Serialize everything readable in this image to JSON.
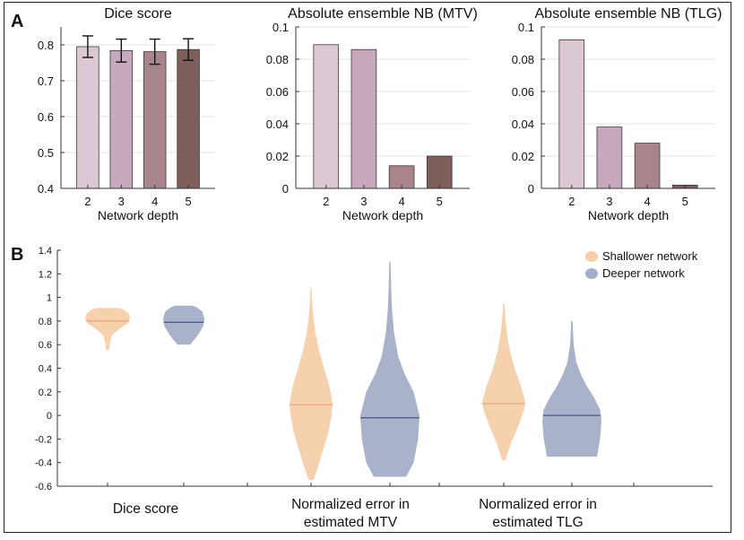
{
  "panel_labels": {
    "a": "A",
    "b": "B"
  },
  "colors": {
    "depth2": "#dcc8d4",
    "depth3": "#c7a9bd",
    "depth4": "#a8858a",
    "depth5": "#7d5e5b",
    "shallow": "#f4cfa9",
    "shallow_median": "#e8a678",
    "deep": "#a4aec6",
    "deep_median": "#4b5580"
  },
  "chart_data": [
    {
      "type": "bar",
      "title": "Dice score",
      "xlabel": "Network depth",
      "ylabel": "",
      "categories": [
        "2",
        "3",
        "4",
        "5"
      ],
      "values": [
        0.795,
        0.784,
        0.781,
        0.787
      ],
      "errors": [
        0.03,
        0.032,
        0.035,
        0.03
      ],
      "ylim": [
        0.4,
        0.85
      ],
      "yticks": [
        "0.4",
        "0.5",
        "0.6",
        "0.7",
        "0.8"
      ],
      "grid": true
    },
    {
      "type": "bar",
      "title": "Absolute ensemble NB (MTV)",
      "xlabel": "Network depth",
      "ylabel": "",
      "categories": [
        "2",
        "3",
        "4",
        "5"
      ],
      "values": [
        0.089,
        0.086,
        0.014,
        0.02
      ],
      "ylim": [
        0,
        0.1
      ],
      "yticks": [
        "0",
        "0.02",
        "0.04",
        "0.06",
        "0.08",
        "0.1"
      ],
      "grid": true
    },
    {
      "type": "bar",
      "title": "Absolute ensemble NB (TLG)",
      "xlabel": "Network depth",
      "ylabel": "",
      "categories": [
        "2",
        "3",
        "4",
        "5"
      ],
      "values": [
        0.092,
        0.038,
        0.028,
        0.002
      ],
      "ylim": [
        0,
        0.1
      ],
      "yticks": [
        "0",
        "0.02",
        "0.04",
        "0.06",
        "0.08",
        "0.1"
      ],
      "grid": true
    },
    {
      "type": "violin",
      "title": "",
      "ylim": [
        -0.6,
        1.4
      ],
      "yticks": [
        "-0.6",
        "-0.4",
        "-0.2",
        "0",
        "0.2",
        "0.4",
        "0.6",
        "0.8",
        "1",
        "1.2",
        "1.4"
      ],
      "legend": {
        "position": "top-right",
        "entries": [
          "Shallower network",
          "Deeper network"
        ]
      },
      "groups": [
        {
          "label": "Dice score",
          "series": [
            {
              "name": "Shallower network",
              "median": 0.8,
              "min": 0.55,
              "max": 0.91,
              "profile": [
                [
                  0.55,
                  0.06
                ],
                [
                  0.62,
                  0.11
                ],
                [
                  0.68,
                  0.2
                ],
                [
                  0.73,
                  0.5
                ],
                [
                  0.78,
                  0.9
                ],
                [
                  0.82,
                  1
                ],
                [
                  0.86,
                  0.95
                ],
                [
                  0.9,
                  0.7
                ],
                [
                  0.91,
                  0.45
                ]
              ]
            },
            {
              "name": "Deeper network",
              "median": 0.79,
              "min": 0.6,
              "max": 0.93,
              "profile": [
                [
                  0.6,
                  0.3
                ],
                [
                  0.65,
                  0.55
                ],
                [
                  0.7,
                  0.75
                ],
                [
                  0.76,
                  0.95
                ],
                [
                  0.82,
                  1
                ],
                [
                  0.88,
                  0.9
                ],
                [
                  0.92,
                  0.6
                ],
                [
                  0.93,
                  0.4
                ]
              ]
            }
          ]
        },
        {
          "label": "Normalized error in estimated MTV",
          "series": [
            {
              "name": "Shallower network",
              "median": 0.09,
              "min": -0.55,
              "max": 1.08,
              "profile": [
                [
                  -0.55,
                  0.1
                ],
                [
                  -0.45,
                  0.3
                ],
                [
                  -0.3,
                  0.55
                ],
                [
                  -0.15,
                  0.8
                ],
                [
                  0,
                  0.95
                ],
                [
                  0.1,
                  1
                ],
                [
                  0.25,
                  0.85
                ],
                [
                  0.4,
                  0.6
                ],
                [
                  0.55,
                  0.38
                ],
                [
                  0.7,
                  0.2
                ],
                [
                  0.85,
                  0.1
                ],
                [
                  1.0,
                  0.04
                ],
                [
                  1.08,
                  0.02
                ]
              ]
            },
            {
              "name": "Deeper network",
              "median": -0.02,
              "min": -0.52,
              "max": 1.3,
              "profile": [
                [
                  -0.52,
                  0.55
                ],
                [
                  -0.4,
                  0.8
                ],
                [
                  -0.2,
                  0.95
                ],
                [
                  0,
                  1
                ],
                [
                  0.2,
                  0.8
                ],
                [
                  0.35,
                  0.5
                ],
                [
                  0.5,
                  0.28
                ],
                [
                  0.7,
                  0.14
                ],
                [
                  0.9,
                  0.07
                ],
                [
                  1.1,
                  0.04
                ],
                [
                  1.3,
                  0.02
                ]
              ]
            }
          ]
        },
        {
          "label": "Normalized error in estimated TLG",
          "series": [
            {
              "name": "Shallower network",
              "median": 0.1,
              "min": -0.38,
              "max": 0.95,
              "profile": [
                [
                  -0.38,
                  0.08
                ],
                [
                  -0.25,
                  0.3
                ],
                [
                  -0.1,
                  0.65
                ],
                [
                  0.05,
                  0.95
                ],
                [
                  0.12,
                  1
                ],
                [
                  0.25,
                  0.8
                ],
                [
                  0.4,
                  0.5
                ],
                [
                  0.55,
                  0.28
                ],
                [
                  0.7,
                  0.14
                ],
                [
                  0.85,
                  0.06
                ],
                [
                  0.95,
                  0.03
                ]
              ]
            },
            {
              "name": "Deeper network",
              "median": 0.0,
              "min": -0.35,
              "max": 0.8,
              "profile": [
                [
                  -0.35,
                  0.85
                ],
                [
                  -0.2,
                  0.95
                ],
                [
                  -0.05,
                  1
                ],
                [
                  0.05,
                  0.95
                ],
                [
                  0.15,
                  0.75
                ],
                [
                  0.25,
                  0.5
                ],
                [
                  0.35,
                  0.3
                ],
                [
                  0.45,
                  0.15
                ],
                [
                  0.6,
                  0.06
                ],
                [
                  0.8,
                  0.02
                ]
              ]
            }
          ]
        }
      ]
    }
  ]
}
